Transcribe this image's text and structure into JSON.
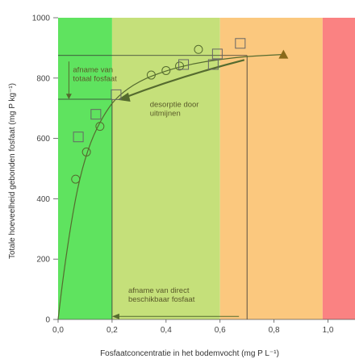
{
  "chart_data": {
    "type": "scatter",
    "xlabel": "Fosfaatconcentratie in het bodemvocht (mg P L⁻¹)",
    "ylabel": "Totale hoeveelheid gebonden fosfaat (mg P kg⁻¹)",
    "xlim": [
      0,
      1.1
    ],
    "ylim": [
      0,
      1000
    ],
    "x_ticks": [
      "0,0",
      "0,2",
      "0,4",
      "0,6",
      "0,8",
      "1,0"
    ],
    "y_ticks": [
      "0",
      "200",
      "400",
      "600",
      "800",
      "1000"
    ],
    "grid": false,
    "bands": [
      {
        "x0": 0.0,
        "x1": 0.2,
        "color": "#5fe35f"
      },
      {
        "x0": 0.2,
        "x1": 0.6,
        "color": "#c5e07a"
      },
      {
        "x0": 0.6,
        "x1": 0.98,
        "color": "#fbc87e"
      },
      {
        "x0": 0.98,
        "x1": 1.1,
        "color": "#fa8282"
      }
    ],
    "series": [
      {
        "marker": "circle",
        "points": [
          [
            0.065,
            465
          ],
          [
            0.105,
            555
          ],
          [
            0.155,
            640
          ],
          [
            0.345,
            810
          ],
          [
            0.4,
            825
          ],
          [
            0.45,
            840
          ],
          [
            0.52,
            895
          ]
        ]
      },
      {
        "marker": "square",
        "points": [
          [
            0.075,
            605
          ],
          [
            0.14,
            680
          ],
          [
            0.215,
            745
          ],
          [
            0.465,
            845
          ],
          [
            0.575,
            845
          ],
          [
            0.59,
            880
          ],
          [
            0.675,
            915
          ]
        ]
      },
      {
        "marker": "triangle",
        "color": "#8a6a1a",
        "points": [
          [
            0.835,
            878
          ]
        ]
      }
    ],
    "curve": [
      [
        0.0,
        0
      ],
      [
        0.02,
        150
      ],
      [
        0.05,
        330
      ],
      [
        0.08,
        470
      ],
      [
        0.12,
        590
      ],
      [
        0.17,
        680
      ],
      [
        0.22,
        740
      ],
      [
        0.3,
        790
      ],
      [
        0.4,
        825
      ],
      [
        0.5,
        848
      ],
      [
        0.6,
        862
      ],
      [
        0.7,
        872
      ],
      [
        0.83,
        878
      ]
    ],
    "annotations": [
      {
        "text": [
          "afname van",
          "totaal fosfaat"
        ],
        "x": 0.055,
        "y": 820
      },
      {
        "text": [
          "desorptie door",
          "uitmijnen"
        ],
        "x": 0.34,
        "y": 705
      },
      {
        "text": [
          "afname van direct",
          "beschikbaar fosfaat"
        ],
        "x": 0.26,
        "y": 88
      }
    ]
  }
}
